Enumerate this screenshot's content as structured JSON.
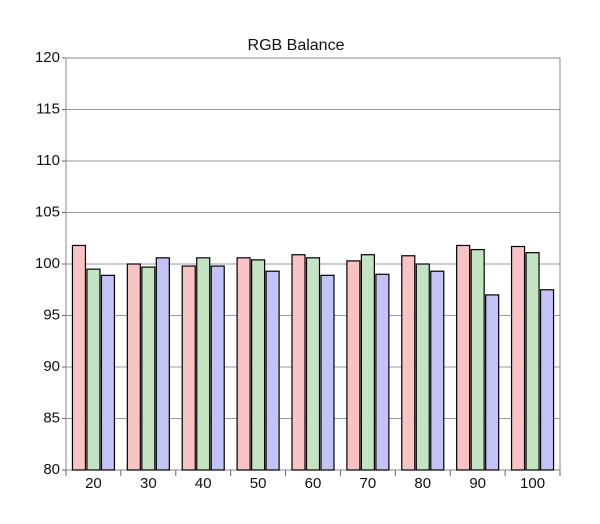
{
  "chart_data": {
    "type": "bar",
    "title": "RGB Balance",
    "categories": [
      "20",
      "30",
      "40",
      "50",
      "60",
      "70",
      "80",
      "90",
      "100"
    ],
    "series": [
      {
        "color": "#f9c3c3",
        "values": [
          101.8,
          100.0,
          99.8,
          100.6,
          100.9,
          100.3,
          100.8,
          101.8,
          101.7
        ]
      },
      {
        "color": "#c3e3c3",
        "values": [
          99.5,
          99.7,
          100.6,
          100.4,
          100.6,
          100.9,
          100.0,
          101.4,
          101.1
        ]
      },
      {
        "color": "#c3c3f7",
        "values": [
          98.9,
          100.6,
          99.8,
          99.3,
          98.9,
          99.0,
          99.3,
          97.0,
          97.5
        ]
      }
    ],
    "ylim": [
      80,
      120
    ],
    "yticks": [
      80,
      85,
      90,
      95,
      100,
      105,
      110,
      115,
      120
    ],
    "grid": true
  }
}
